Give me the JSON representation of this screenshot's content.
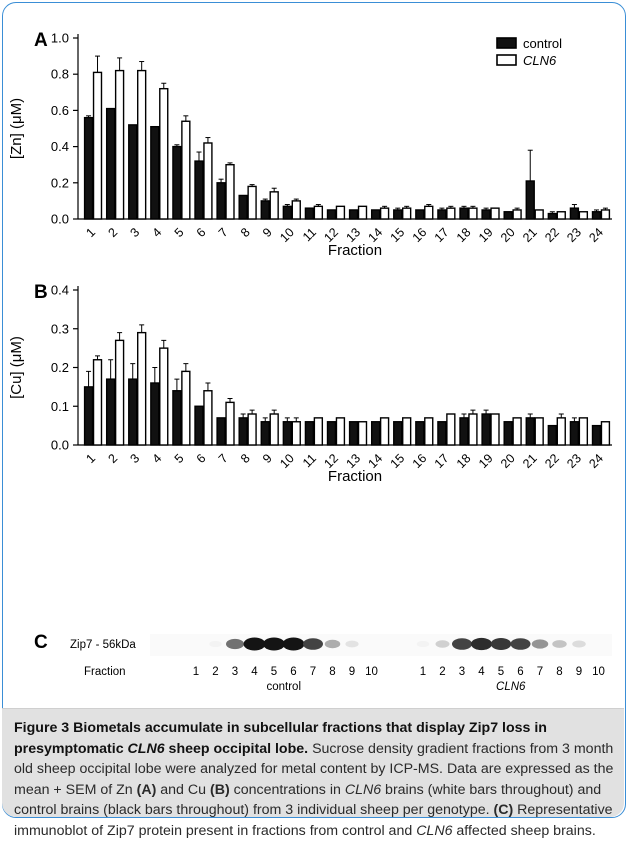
{
  "chart_data": [
    {
      "type": "bar",
      "panel_label": "A",
      "ylabel": "[Zn] (μM)",
      "xlabel": "Fraction",
      "ylim": [
        0,
        1.0
      ],
      "yticks": [
        "0.0",
        "0.2",
        "0.4",
        "0.6",
        "0.8",
        "1.0"
      ],
      "ytick_values": [
        0,
        0.2,
        0.4,
        0.6,
        0.8,
        1.0
      ],
      "categories": [
        "1",
        "2",
        "3",
        "4",
        "5",
        "6",
        "7",
        "8",
        "9",
        "10",
        "11",
        "12",
        "13",
        "14",
        "15",
        "16",
        "17",
        "18",
        "19",
        "20",
        "21",
        "22",
        "23",
        "24"
      ],
      "legend_position": "top-right",
      "series": [
        {
          "name": "control",
          "color": "#111111",
          "values": [
            0.56,
            0.61,
            0.52,
            0.51,
            0.4,
            0.32,
            0.2,
            0.13,
            0.1,
            0.07,
            0.06,
            0.05,
            0.05,
            0.05,
            0.05,
            0.05,
            0.05,
            0.06,
            0.05,
            0.04,
            0.21,
            0.03,
            0.06,
            0.04
          ],
          "sem": [
            0.01,
            0.0,
            0.0,
            0.0,
            0.01,
            0.05,
            0.02,
            0.0,
            0.01,
            0.01,
            0.0,
            0.0,
            0.0,
            0.0,
            0.01,
            0.0,
            0.01,
            0.01,
            0.01,
            0.0,
            0.17,
            0.01,
            0.02,
            0.01
          ]
        },
        {
          "name": "CLN6",
          "color": "#ffffff",
          "values": [
            0.81,
            0.82,
            0.82,
            0.72,
            0.54,
            0.42,
            0.3,
            0.18,
            0.15,
            0.1,
            0.07,
            0.07,
            0.07,
            0.06,
            0.06,
            0.07,
            0.06,
            0.06,
            0.06,
            0.05,
            0.05,
            0.04,
            0.04,
            0.05
          ],
          "sem": [
            0.09,
            0.07,
            0.05,
            0.03,
            0.03,
            0.03,
            0.01,
            0.01,
            0.02,
            0.01,
            0.01,
            0.0,
            0.0,
            0.01,
            0.01,
            0.01,
            0.01,
            0.01,
            0.0,
            0.01,
            0.0,
            0.0,
            0.0,
            0.01
          ]
        }
      ]
    },
    {
      "type": "bar",
      "panel_label": "B",
      "ylabel": "[Cu] (μM)",
      "xlabel": "Fraction",
      "ylim": [
        0,
        0.4
      ],
      "yticks": [
        "0.0",
        "0.1",
        "0.2",
        "0.3",
        "0.4"
      ],
      "ytick_values": [
        0,
        0.1,
        0.2,
        0.3,
        0.4
      ],
      "categories": [
        "1",
        "2",
        "3",
        "4",
        "5",
        "6",
        "7",
        "8",
        "9",
        "10",
        "11",
        "12",
        "13",
        "14",
        "15",
        "16",
        "17",
        "18",
        "19",
        "20",
        "21",
        "22",
        "23",
        "24"
      ],
      "series": [
        {
          "name": "control",
          "color": "#111111",
          "values": [
            0.15,
            0.17,
            0.17,
            0.16,
            0.14,
            0.1,
            0.07,
            0.07,
            0.06,
            0.06,
            0.06,
            0.06,
            0.06,
            0.06,
            0.06,
            0.06,
            0.06,
            0.07,
            0.08,
            0.06,
            0.07,
            0.05,
            0.06,
            0.05
          ],
          "sem": [
            0.04,
            0.05,
            0.04,
            0.04,
            0.03,
            0.0,
            0.0,
            0.01,
            0.01,
            0.01,
            0.0,
            0.0,
            0.0,
            0.0,
            0.0,
            0.0,
            0.0,
            0.01,
            0.01,
            0.0,
            0.01,
            0.0,
            0.01,
            0.0
          ]
        },
        {
          "name": "CLN6",
          "color": "#ffffff",
          "values": [
            0.22,
            0.27,
            0.29,
            0.25,
            0.19,
            0.14,
            0.11,
            0.08,
            0.08,
            0.06,
            0.07,
            0.07,
            0.06,
            0.07,
            0.07,
            0.07,
            0.08,
            0.08,
            0.08,
            0.07,
            0.07,
            0.07,
            0.07,
            0.06
          ],
          "sem": [
            0.01,
            0.02,
            0.02,
            0.02,
            0.02,
            0.02,
            0.01,
            0.01,
            0.01,
            0.01,
            0.0,
            0.0,
            0.0,
            0.0,
            0.0,
            0.0,
            0.0,
            0.01,
            0.0,
            0.0,
            0.0,
            0.01,
            0.0,
            0.0
          ]
        }
      ]
    }
  ],
  "blot": {
    "panel_label": "C",
    "band_label": "Zip7 - 56kDa",
    "row_label": "Fraction",
    "groups": [
      {
        "name": "control",
        "lanes": [
          "1",
          "2",
          "3",
          "4",
          "5",
          "6",
          "7",
          "8",
          "9",
          "10"
        ],
        "intensity": [
          0,
          0.05,
          0.6,
          1.0,
          1.0,
          1.0,
          0.8,
          0.35,
          0.12,
          0.0
        ]
      },
      {
        "name": "CLN6",
        "lanes": [
          "1",
          "2",
          "3",
          "4",
          "5",
          "6",
          "7",
          "8",
          "9",
          "10"
        ],
        "intensity": [
          0.05,
          0.2,
          0.8,
          0.9,
          0.85,
          0.8,
          0.45,
          0.25,
          0.15,
          0.0
        ]
      }
    ]
  },
  "caption": {
    "title_a": "Figure 3 Biometals accumulate in subcellular fractions that display Zip7 loss in presymptomatic ",
    "title_italic": "CLN6",
    "title_b": " sheep occipital lobe.",
    "p1": "Sucrose density gradient fractions from 3 month old sheep occipital lobe were analyzed for metal content by ICP-MS. Data are expressed as the mean + SEM of Zn ",
    "p1_A": "(A)",
    "p2": " and Cu ",
    "p2_B": "(B)",
    "p3": " concentrations in ",
    "p3_italic": "CLN6",
    "p4": " brains (white bars throughout) and control brains (black bars throughout) from 3 individual sheep per genotype. ",
    "p4_C": "(C)",
    "p5": " Representative immunoblot of Zip7 protein present in fractions from control and ",
    "p5_italic": "CLN6",
    "p6": " affected sheep brains."
  }
}
